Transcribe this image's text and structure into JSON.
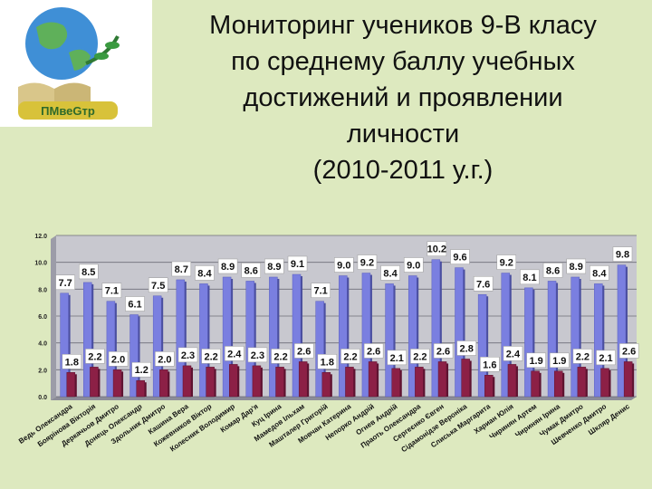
{
  "title_lines": [
    "Мониторинг  учеников 9-В класу",
    "по среднему баллу учебных",
    "достижений и проявлении",
    "личности",
    "(2010-2011 у.г.)"
  ],
  "logo": {
    "text": "ПМвеGтр"
  },
  "colors": {
    "background": "#dde9bf",
    "plot_background": "#c8c8cf",
    "bar_blue": "#7a7fe0",
    "bar_maroon": "#8c2046",
    "label_box": "#ffffff"
  },
  "chart_data": {
    "type": "bar",
    "ylim": [
      0,
      12
    ],
    "yticks": [
      "0.0",
      "2.0",
      "4.0",
      "6.0",
      "8.0",
      "10.0",
      "12.0"
    ],
    "grid": true,
    "categories": [
      "Ведь Олександра",
      "Боярінова Вікторія",
      "Деркачьов Дмитро",
      "Донець Олександр",
      "Здольник Дмитро",
      "Кашина Вера",
      "Кожевников Віктор",
      "Колесник Володимир",
      "Комар Дар'я",
      "Куц Ірина",
      "Мамедов Ільхам",
      "Машталер Григорій",
      "Мовчан Катерина",
      "Непорко Андрій",
      "Огнев Андрій",
      "Праоть Олександра",
      "Сергеєнко Євген",
      "Сідамонідзе Вероніка",
      "Слиська Маргарита",
      "Хариан Юлія",
      "Чиринян Артем",
      "Чиринян Ірина",
      "Чумак Дмитро",
      "Шевченко Дмитро",
      "Шкляр Денис"
    ],
    "series": [
      {
        "values": [
          7.7,
          8.5,
          7.1,
          6.1,
          7.5,
          8.7,
          8.4,
          8.9,
          8.6,
          8.9,
          9.1,
          7.1,
          9.0,
          9.2,
          8.4,
          9.0,
          10.2,
          9.6,
          7.6,
          9.2,
          8.1,
          8.6,
          8.9,
          8.4,
          9.8
        ]
      },
      {
        "values": [
          1.8,
          2.2,
          2.0,
          1.2,
          2.0,
          2.3,
          2.2,
          2.4,
          2.3,
          2.2,
          2.6,
          1.8,
          2.2,
          2.6,
          2.1,
          2.2,
          2.6,
          2.8,
          1.6,
          2.4,
          1.9,
          1.9,
          2.2,
          2.1,
          2.6
        ]
      }
    ]
  }
}
